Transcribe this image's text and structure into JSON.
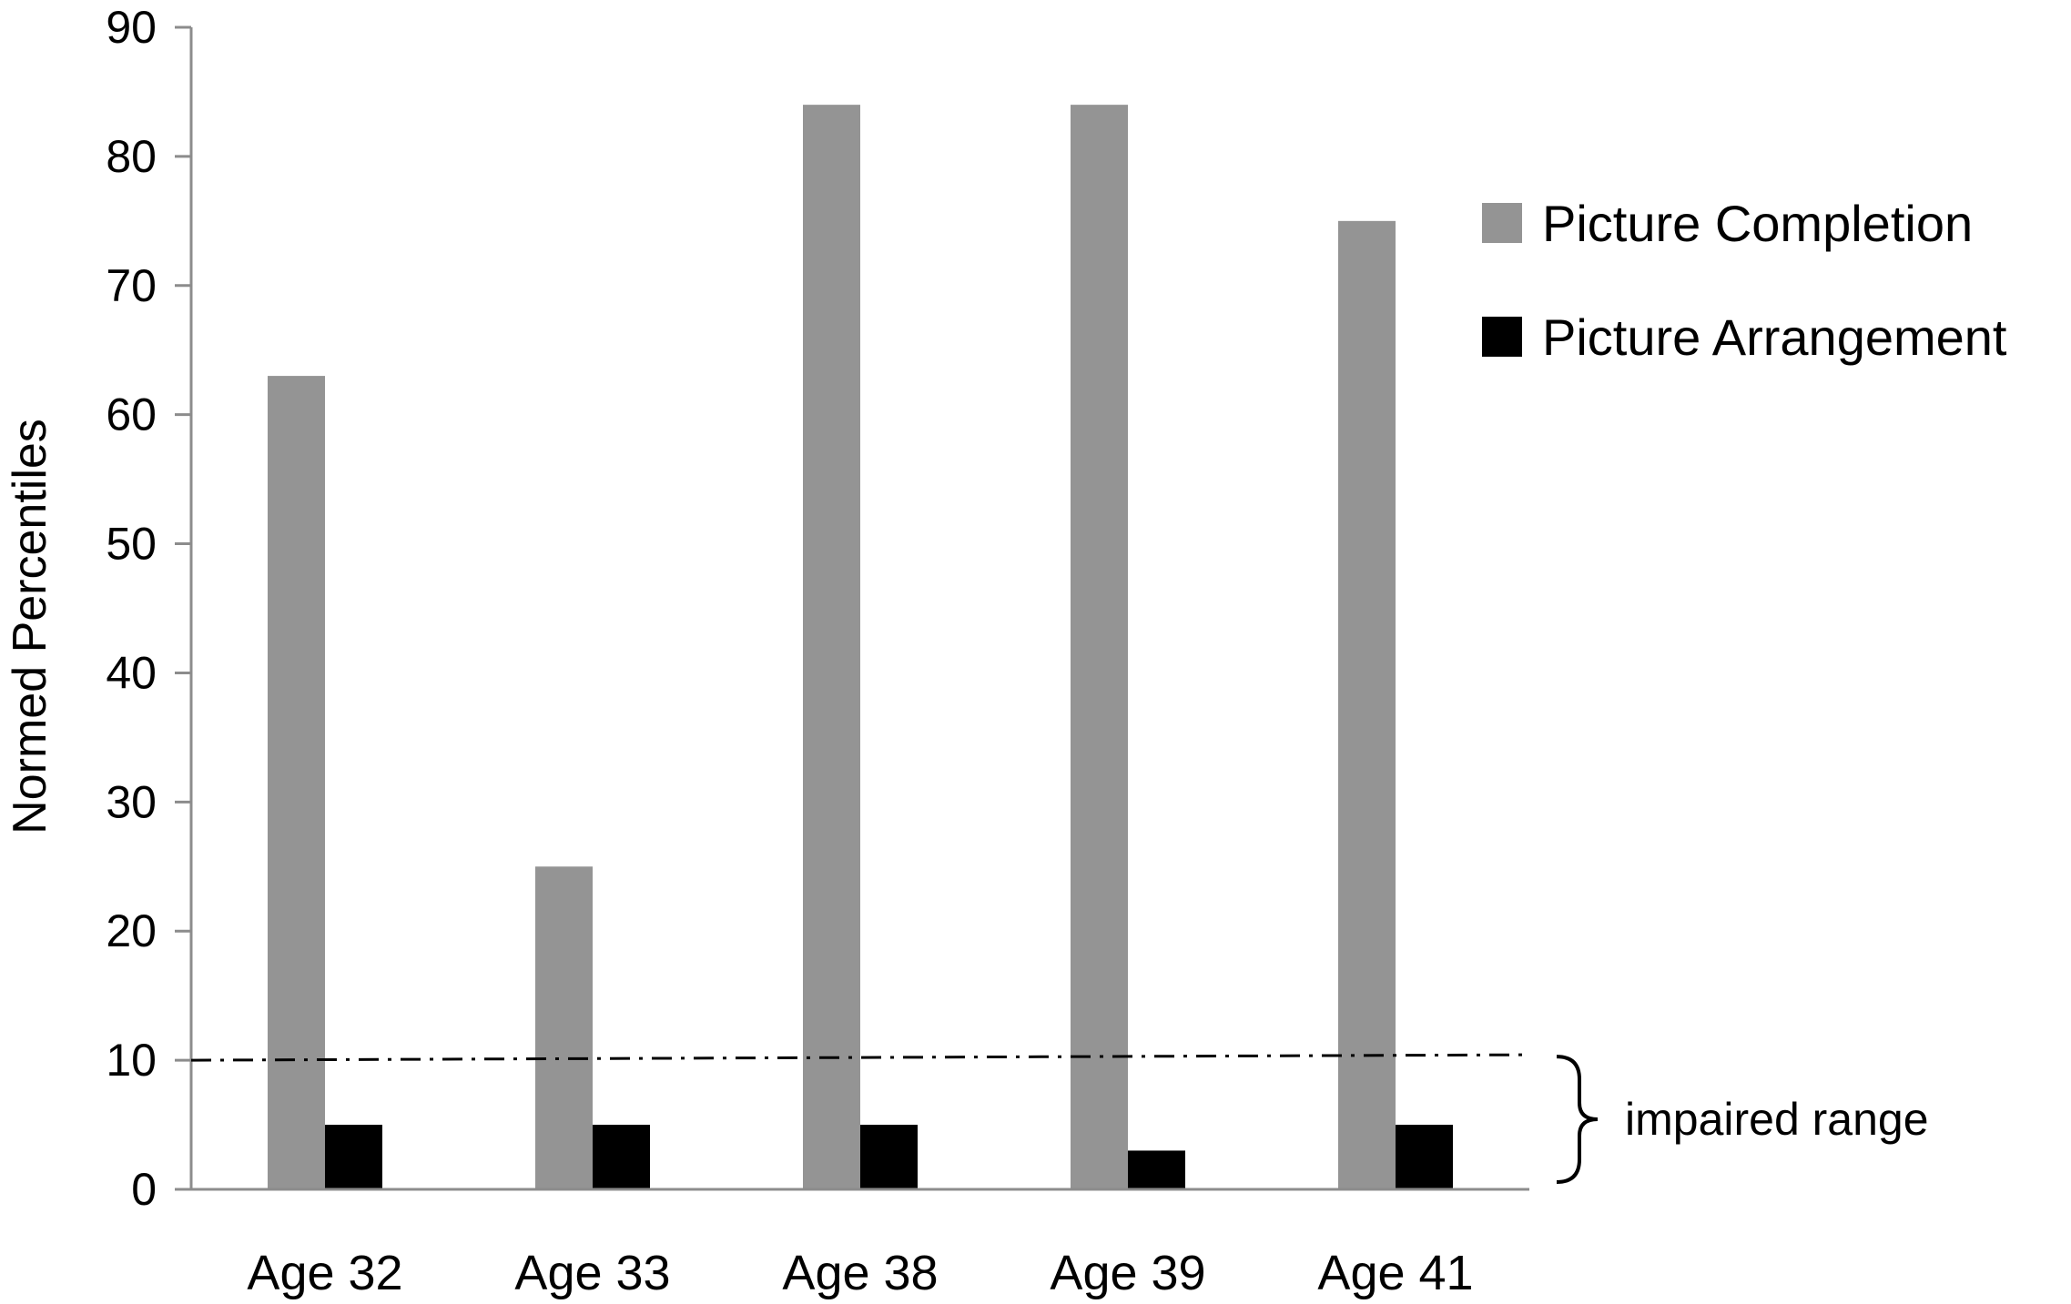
{
  "chart_data": {
    "type": "bar",
    "title": "",
    "xlabel": "",
    "ylabel": "Normed Percentiles",
    "ylim": [
      0,
      90
    ],
    "yticks": [
      0,
      10,
      20,
      30,
      40,
      50,
      60,
      70,
      80,
      90
    ],
    "categories": [
      "Age 32",
      "Age 33",
      "Age 38",
      "Age 39",
      "Age 41"
    ],
    "series": [
      {
        "name": "Picture Completion",
        "color": "#949494",
        "values": [
          63,
          25,
          84,
          84,
          75
        ]
      },
      {
        "name": "Picture Arrangement",
        "color": "#000000",
        "values": [
          5,
          5,
          5,
          3,
          5
        ]
      }
    ],
    "legend_position": "top-right",
    "grid": false,
    "reference_line": {
      "value": 10,
      "style": "dash-dot"
    },
    "annotation": {
      "text": "impaired range",
      "range": [
        0,
        10
      ]
    }
  }
}
